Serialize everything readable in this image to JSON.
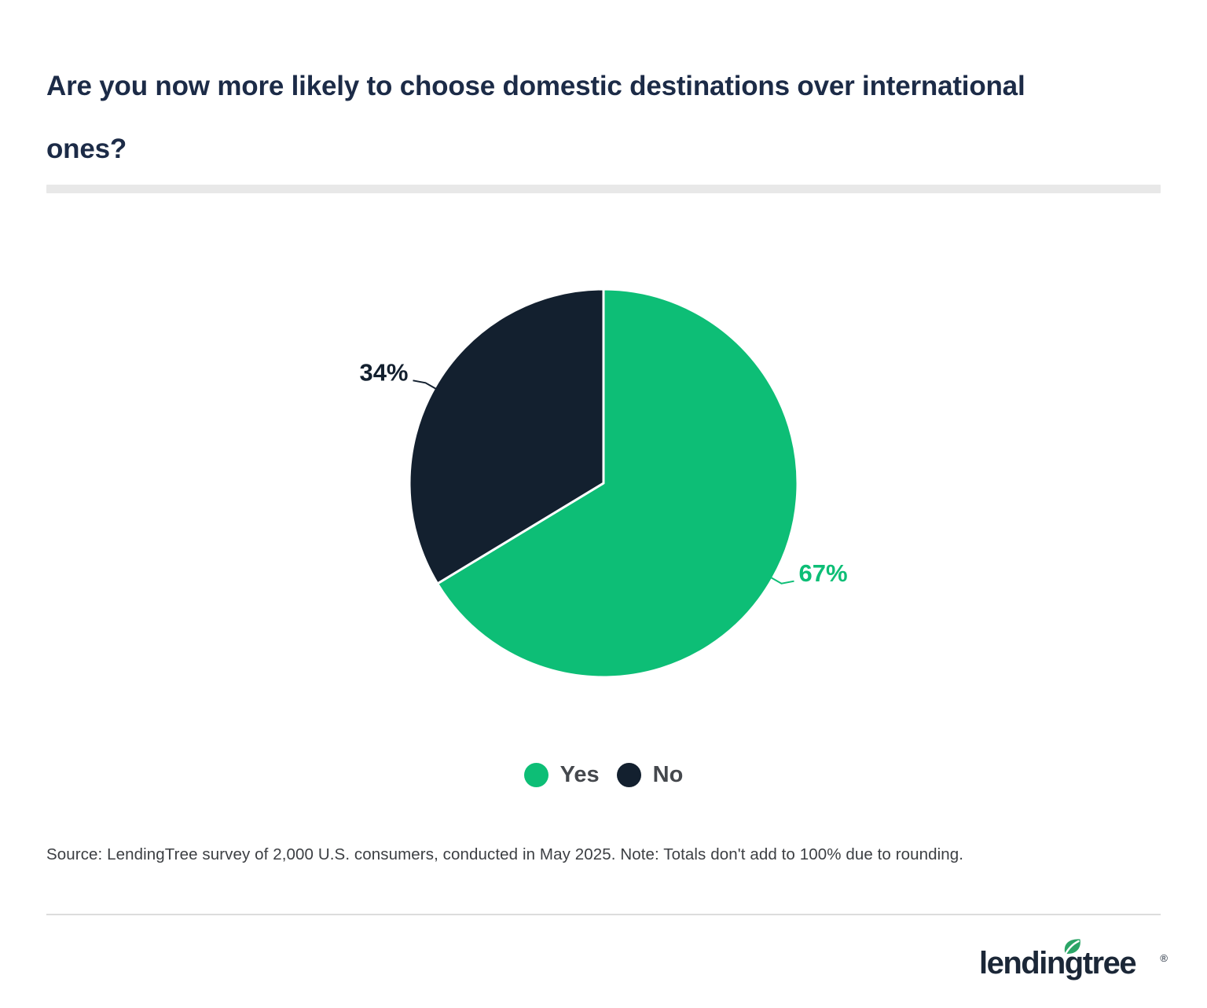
{
  "page": {
    "background": "#ffffff"
  },
  "header": {
    "title_lines": [
      "Are you now more likely to choose domestic destinations over international",
      "ones?"
    ],
    "title_color": "#1c2b47"
  },
  "chart_data": {
    "type": "pie",
    "title": "Are you now more likely to choose domestic destinations over international ones?",
    "categories": [
      "Yes",
      "No"
    ],
    "values": [
      67,
      34
    ],
    "labels": [
      "67%",
      "34%"
    ],
    "colors": [
      "#0dbe76",
      "#13202f"
    ],
    "legend_position": "bottom-center",
    "start_angle_deg": 0,
    "direction": "clockwise",
    "slice_border_color": "#ffffff"
  },
  "footer": {
    "source_note": "Source: LendingTree survey of 2,000 U.S. consumers, conducted in May 2025. Note: Totals don't add to 100% due to rounding.",
    "logo": {
      "text": "lendingtree",
      "registered_mark": "®",
      "text_color": "#1b2737",
      "leaf_color": "#2ba567"
    }
  }
}
